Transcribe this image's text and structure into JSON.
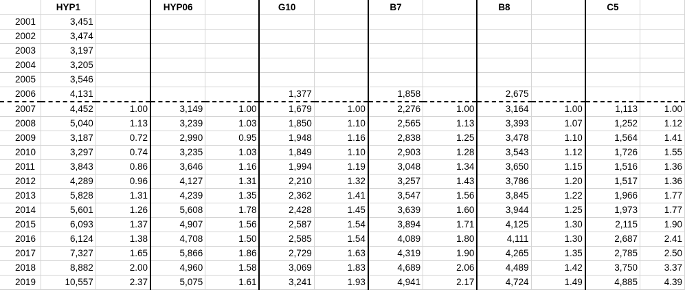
{
  "headers": [
    "HYP1",
    "HYP06",
    "G10",
    "B7",
    "B8",
    "C5"
  ],
  "rows": [
    {
      "year": "2001",
      "cells": [
        "3,451",
        "",
        "",
        "",
        "",
        "",
        "",
        "",
        "",
        "",
        "",
        ""
      ]
    },
    {
      "year": "2002",
      "cells": [
        "3,474",
        "",
        "",
        "",
        "",
        "",
        "",
        "",
        "",
        "",
        "",
        ""
      ]
    },
    {
      "year": "2003",
      "cells": [
        "3,197",
        "",
        "",
        "",
        "",
        "",
        "",
        "",
        "",
        "",
        "",
        ""
      ]
    },
    {
      "year": "2004",
      "cells": [
        "3,205",
        "",
        "",
        "",
        "",
        "",
        "",
        "",
        "",
        "",
        "",
        ""
      ]
    },
    {
      "year": "2005",
      "cells": [
        "3,546",
        "",
        "",
        "",
        "",
        "",
        "",
        "",
        "",
        "",
        "",
        ""
      ]
    },
    {
      "year": "2006",
      "cells": [
        "4,131",
        "",
        "",
        "",
        "1,377",
        "",
        "1,858",
        "",
        "2,675",
        "",
        "",
        ""
      ]
    },
    {
      "year": "2007",
      "cells": [
        "4,452",
        "1.00",
        "3,149",
        "1.00",
        "1,679",
        "1.00",
        "2,276",
        "1.00",
        "3,164",
        "1.00",
        "1,113",
        "1.00"
      ]
    },
    {
      "year": "2008",
      "cells": [
        "5,040",
        "1.13",
        "3,239",
        "1.03",
        "1,850",
        "1.10",
        "2,565",
        "1.13",
        "3,393",
        "1.07",
        "1,252",
        "1.12"
      ]
    },
    {
      "year": "2009",
      "cells": [
        "3,187",
        "0.72",
        "2,990",
        "0.95",
        "1,948",
        "1.16",
        "2,838",
        "1.25",
        "3,478",
        "1.10",
        "1,564",
        "1.41"
      ]
    },
    {
      "year": "2010",
      "cells": [
        "3,297",
        "0.74",
        "3,235",
        "1.03",
        "1,849",
        "1.10",
        "2,903",
        "1.28",
        "3,543",
        "1.12",
        "1,726",
        "1.55"
      ]
    },
    {
      "year": "2011",
      "cells": [
        "3,843",
        "0.86",
        "3,646",
        "1.16",
        "1,994",
        "1.19",
        "3,048",
        "1.34",
        "3,650",
        "1.15",
        "1,516",
        "1.36"
      ]
    },
    {
      "year": "2012",
      "cells": [
        "4,289",
        "0.96",
        "4,127",
        "1.31",
        "2,210",
        "1.32",
        "3,257",
        "1.43",
        "3,786",
        "1.20",
        "1,517",
        "1.36"
      ]
    },
    {
      "year": "2013",
      "cells": [
        "5,828",
        "1.31",
        "4,239",
        "1.35",
        "2,362",
        "1.41",
        "3,547",
        "1.56",
        "3,845",
        "1.22",
        "1,966",
        "1.77"
      ]
    },
    {
      "year": "2014",
      "cells": [
        "5,601",
        "1.26",
        "5,608",
        "1.78",
        "2,428",
        "1.45",
        "3,639",
        "1.60",
        "3,944",
        "1.25",
        "1,973",
        "1.77"
      ]
    },
    {
      "year": "2015",
      "cells": [
        "6,093",
        "1.37",
        "4,907",
        "1.56",
        "2,587",
        "1.54",
        "3,894",
        "1.71",
        "4,125",
        "1.30",
        "2,115",
        "1.90"
      ]
    },
    {
      "year": "2016",
      "cells": [
        "6,124",
        "1.38",
        "4,708",
        "1.50",
        "2,585",
        "1.54",
        "4,089",
        "1.80",
        "4,111",
        "1.30",
        "2,687",
        "2.41"
      ]
    },
    {
      "year": "2017",
      "cells": [
        "7,327",
        "1.65",
        "5,866",
        "1.86",
        "2,729",
        "1.63",
        "4,319",
        "1.90",
        "4,265",
        "1.35",
        "2,785",
        "2.50"
      ]
    },
    {
      "year": "2018",
      "cells": [
        "8,882",
        "2.00",
        "4,960",
        "1.58",
        "3,069",
        "1.83",
        "4,689",
        "2.06",
        "4,489",
        "1.42",
        "3,750",
        "3.37"
      ]
    },
    {
      "year": "2019",
      "cells": [
        "10,557",
        "2.37",
        "5,075",
        "1.61",
        "3,241",
        "1.93",
        "4,941",
        "2.17",
        "4,724",
        "1.49",
        "4,885",
        "4.39"
      ]
    }
  ]
}
